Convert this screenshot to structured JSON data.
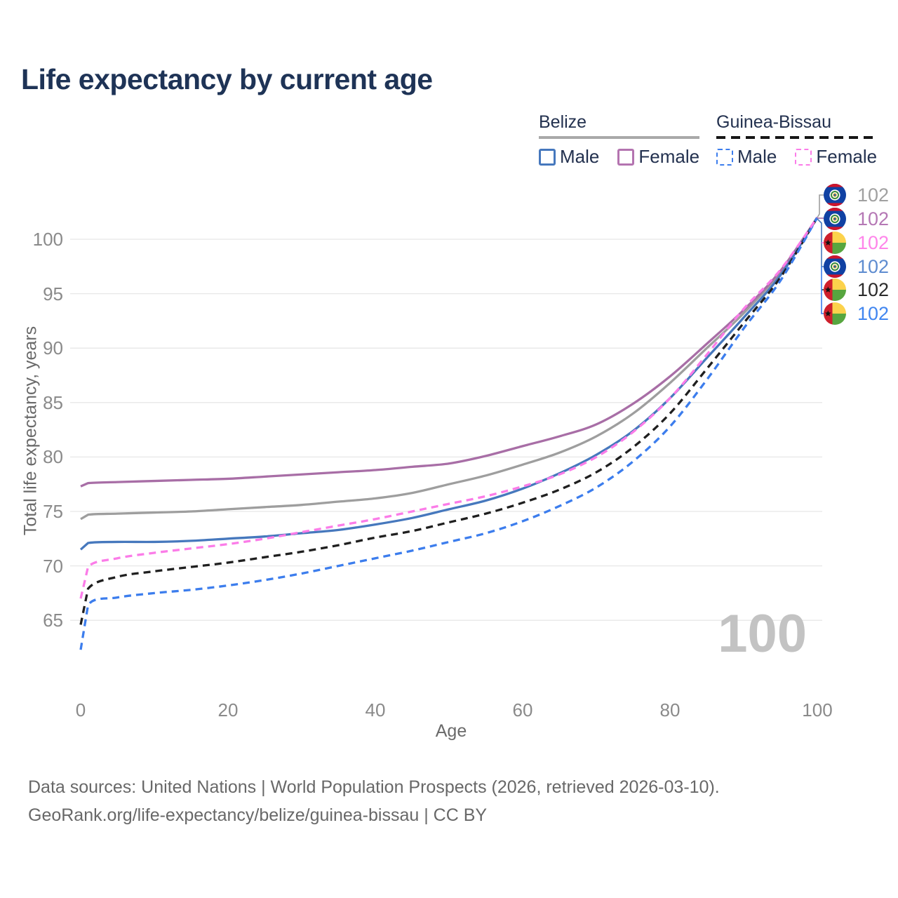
{
  "title": "Life expectancy by current age",
  "legend": {
    "groups": [
      {
        "name": "Belize",
        "underline": "solid",
        "underline_color": "#a9a9a9",
        "items": [
          {
            "label": "Male",
            "color": "#4678bd",
            "dashed": false
          },
          {
            "label": "Female",
            "color": "#b474b0",
            "dashed": false
          }
        ]
      },
      {
        "name": "Guinea-Bissau",
        "underline": "dashed",
        "underline_color": "#161616",
        "items": [
          {
            "label": "Male",
            "color": "#3c7ded",
            "dashed": true
          },
          {
            "label": "Female",
            "color": "#fb7ce8",
            "dashed": true
          }
        ]
      }
    ]
  },
  "chart_data": {
    "type": "line",
    "title": "Life expectancy by current age",
    "xlabel": "Age",
    "ylabel": "Total life expectancy, years",
    "x_ticks": [
      0,
      20,
      40,
      60,
      80,
      100
    ],
    "y_ticks": [
      65,
      70,
      75,
      80,
      85,
      90,
      95,
      100
    ],
    "xlim": [
      0,
      100
    ],
    "ylim": [
      62,
      103
    ],
    "grid": "horizontal",
    "legend_position": "top-right",
    "x": [
      0,
      1,
      5,
      10,
      15,
      20,
      25,
      30,
      35,
      40,
      45,
      50,
      55,
      60,
      65,
      70,
      75,
      80,
      85,
      90,
      95,
      100
    ],
    "series": [
      {
        "id": "belize-total",
        "name": "Belize — Both sexes",
        "country": "Belize",
        "color": "#9e9e9e",
        "dashed": false,
        "end_value": 102,
        "values": [
          74.3,
          74.7,
          74.8,
          74.9,
          75.0,
          75.2,
          75.4,
          75.6,
          75.9,
          76.2,
          76.7,
          77.5,
          78.3,
          79.3,
          80.4,
          81.9,
          84.0,
          86.8,
          90.0,
          93.2,
          97.0,
          102
        ]
      },
      {
        "id": "belize-female",
        "name": "Belize — Female",
        "country": "Belize",
        "color": "#a86ea6",
        "dashed": false,
        "end_value": 102,
        "values": [
          77.3,
          77.6,
          77.7,
          77.8,
          77.9,
          78.0,
          78.2,
          78.4,
          78.6,
          78.8,
          79.1,
          79.4,
          80.1,
          81.0,
          81.9,
          83.0,
          84.9,
          87.4,
          90.4,
          93.5,
          97.1,
          102
        ]
      },
      {
        "id": "belize-male",
        "name": "Belize — Male",
        "country": "Belize",
        "color": "#4678bd",
        "dashed": false,
        "end_value": 102,
        "values": [
          71.5,
          72.1,
          72.2,
          72.2,
          72.3,
          72.5,
          72.7,
          73.0,
          73.3,
          73.8,
          74.4,
          75.2,
          76.0,
          77.1,
          78.5,
          80.2,
          82.4,
          85.4,
          89.1,
          92.8,
          96.7,
          102
        ]
      },
      {
        "id": "gb-total",
        "name": "Guinea-Bissau — Both sexes",
        "country": "Guinea-Bissau",
        "color": "#1f1f1f",
        "dashed": true,
        "end_value": 102,
        "values": [
          64.6,
          67.9,
          69.0,
          69.5,
          69.9,
          70.3,
          70.8,
          71.3,
          71.9,
          72.6,
          73.2,
          74.0,
          74.8,
          75.8,
          77.0,
          78.6,
          80.9,
          84.0,
          88.1,
          92.3,
          96.5,
          102
        ]
      },
      {
        "id": "gb-male",
        "name": "Guinea-Bissau — Male",
        "country": "Guinea-Bissau",
        "color": "#3c7ded",
        "dashed": true,
        "end_value": 102,
        "values": [
          62.3,
          66.4,
          67.1,
          67.5,
          67.8,
          68.2,
          68.7,
          69.3,
          70.0,
          70.7,
          71.4,
          72.2,
          73.0,
          74.1,
          75.5,
          77.2,
          79.6,
          82.8,
          87.1,
          91.8,
          96.2,
          102
        ]
      },
      {
        "id": "gb-female",
        "name": "Guinea-Bissau — Female",
        "country": "Guinea-Bissau",
        "color": "#fb7ce8",
        "dashed": true,
        "end_value": 102,
        "values": [
          67.0,
          69.9,
          70.7,
          71.2,
          71.6,
          72.0,
          72.5,
          73.1,
          73.7,
          74.3,
          75.0,
          75.7,
          76.4,
          77.3,
          78.4,
          80.0,
          82.3,
          85.4,
          89.4,
          93.6,
          97.2,
          102
        ]
      }
    ]
  },
  "endpoint_labels": [
    {
      "flag": "belize",
      "value": "102",
      "color": "#a0a0a0",
      "series": "belize-total"
    },
    {
      "flag": "belize",
      "value": "102",
      "color": "#b578b5",
      "series": "belize-female"
    },
    {
      "flag": "guinea-bissau",
      "value": "102",
      "color": "#ff85ea",
      "series": "gb-female"
    },
    {
      "flag": "belize",
      "value": "102",
      "color": "#5e8cd0",
      "series": "belize-male"
    },
    {
      "flag": "guinea-bissau",
      "value": "102",
      "color": "#2b2b2b",
      "series": "gb-total"
    },
    {
      "flag": "guinea-bissau",
      "value": "102",
      "color": "#4186f0",
      "series": "gb-male"
    }
  ],
  "age_counter": "100",
  "footer": {
    "line1": "Data sources: United Nations | World Population Prospects (2026, retrieved 2026-03-10).",
    "line2": "GeoRank.org/life-expectancy/belize/guinea-bissau | CC BY"
  },
  "colors": {
    "title": "#1e3356",
    "grid": "#e7e7e7",
    "tick_label": "#8a8a8a",
    "axis_title": "#6a6a6a",
    "watermark": "#c3c3c3"
  }
}
